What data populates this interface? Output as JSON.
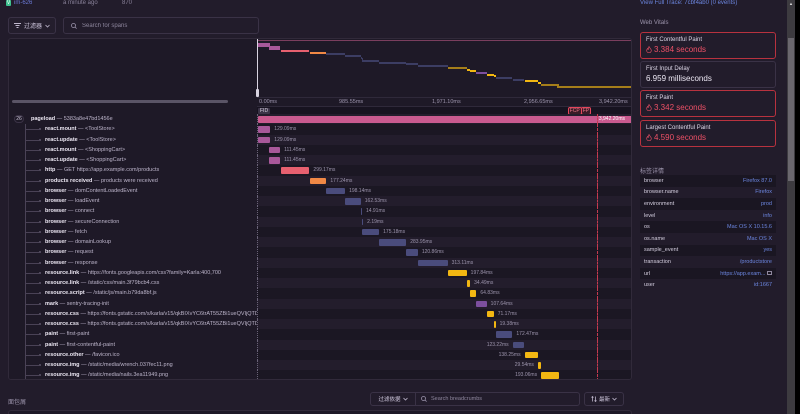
{
  "top": {
    "project": "im-626",
    "time_ago": "a minute ago",
    "number": "870",
    "full_trace_link": "View Full Trace: 7cbf4ab0 (0 events)"
  },
  "toolbar": {
    "filter_label": "过滤器",
    "search_placeholder": "Search for spans"
  },
  "timeline": {
    "axis_ticks": [
      "0.00ms",
      "985.55ms",
      "1,971.10ms",
      "2,956.65ms",
      "3,942.20ms"
    ],
    "fid_label": "FID",
    "fcp_label": "FCP",
    "fp_label": "FP",
    "total_ms": 3942.2,
    "fcp_ms": 3384,
    "fp_ms": 3342
  },
  "spans": [
    {
      "op": "pageload",
      "desc": "5383a8e47bd1456e",
      "start": 0,
      "dur": 3942.2,
      "dur_label": "3,942.20ms",
      "color": "#c95a8f",
      "root": true,
      "count": "26"
    },
    {
      "op": "react.mount",
      "desc": "<ToolStore>",
      "start": 0,
      "dur": 129.09,
      "dur_label": "129.09ms",
      "color": "#a8589a"
    },
    {
      "op": "react.update",
      "desc": "<ToolStore>",
      "start": 0,
      "dur": 129.09,
      "dur_label": "129.09ms",
      "color": "#a8589a"
    },
    {
      "op": "react.mount",
      "desc": "<ShoppingCart>",
      "start": 120,
      "dur": 111.45,
      "dur_label": "111.45ms",
      "color": "#a8589a"
    },
    {
      "op": "react.update",
      "desc": "<ShoppingCart>",
      "start": 120,
      "dur": 111.45,
      "dur_label": "111.45ms",
      "color": "#a8589a"
    },
    {
      "op": "http",
      "desc": "GET https://app.example.com/products",
      "start": 240,
      "dur": 299.17,
      "dur_label": "299.17ms",
      "color": "#e7606f"
    },
    {
      "op": "products received",
      "desc": "products were received",
      "start": 540,
      "dur": 177.24,
      "dur_label": "177.24ms",
      "color": "#f08845"
    },
    {
      "op": "browser",
      "desc": "domContentLoadedEvent",
      "start": 715,
      "dur": 198.14,
      "dur_label": "198.14ms",
      "color": "#4a4c7c"
    },
    {
      "op": "browser",
      "desc": "loadEvent",
      "start": 915,
      "dur": 162.53,
      "dur_label": "162.53ms",
      "color": "#4a4c7c"
    },
    {
      "op": "browser",
      "desc": "connect",
      "start": 1075,
      "dur": 14.91,
      "dur_label": "14.91ms",
      "color": "#4a4c7c"
    },
    {
      "op": "browser",
      "desc": "secureConnection",
      "start": 1090,
      "dur": 2.19,
      "dur_label": "2.19ms",
      "color": "#4a4c7c"
    },
    {
      "op": "browser",
      "desc": "fetch",
      "start": 1095,
      "dur": 175.18,
      "dur_label": "175.18ms",
      "color": "#4a4c7c"
    },
    {
      "op": "browser",
      "desc": "domainLookup",
      "start": 1270,
      "dur": 283.95,
      "dur_label": "283.95ms",
      "color": "#4a4c7c"
    },
    {
      "op": "browser",
      "desc": "request",
      "start": 1555,
      "dur": 120.86,
      "dur_label": "120.86ms",
      "color": "#4a4c7c"
    },
    {
      "op": "browser",
      "desc": "response",
      "start": 1675,
      "dur": 313.11,
      "dur_label": "313.11ms",
      "color": "#4a4c7c"
    },
    {
      "op": "resource.link",
      "desc": "https://fonts.googleapis.com/css?family=Karla:400,700",
      "start": 1990,
      "dur": 197.84,
      "dur_label": "197.84ms",
      "color": "#f2b712"
    },
    {
      "op": "resource.link",
      "desc": "/static/css/main.3f79bcb4.css",
      "start": 2190,
      "dur": 34.49,
      "dur_label": "34.49ms",
      "color": "#f2b712"
    },
    {
      "op": "resource.script",
      "desc": "/static/js/main.b79da8bf.js",
      "start": 2225,
      "dur": 64.83,
      "dur_label": "64.83ms",
      "color": "#f2b712"
    },
    {
      "op": "mark",
      "desc": "sentry-tracing-init",
      "start": 2290,
      "dur": 107.64,
      "dur_label": "107.64ms",
      "color": "#7c4f9e"
    },
    {
      "op": "resource.css",
      "desc": "https://fonts.gstatic.com/s/karla/v15/qkBIXvYC6trAT55ZBi1ueQVIjQTDH52aE0lK.woff2",
      "start": 2400,
      "dur": 71.17,
      "dur_label": "71.17ms",
      "color": "#f2b712"
    },
    {
      "op": "resource.css",
      "desc": "https://fonts.gstatic.com/s/karla/v15/qkBIXvYC6trAT55ZBi1ueQVIjQTD-JqaE0lK.woff2",
      "start": 2472,
      "dur": 19.38,
      "dur_label": "19.38ms",
      "color": "#f2b712"
    },
    {
      "op": "paint",
      "desc": "first-paint",
      "start": 2495,
      "dur": 172.47,
      "dur_label": "172.47ms",
      "color": "#4a4c7c"
    },
    {
      "op": "paint",
      "desc": "first-contentful-paint",
      "start": 2670,
      "dur": 123.22,
      "dur_label": "123.22ms",
      "color": "#4a4c7c",
      "label_left": true
    },
    {
      "op": "resource.other",
      "desc": "/favicon.ico",
      "start": 2795,
      "dur": 138.25,
      "dur_label": "138.25ms",
      "color": "#f2b712",
      "label_left": true
    },
    {
      "op": "resource.img",
      "desc": "/static/media/wrench.037fec11.png",
      "start": 2935,
      "dur": 29.54,
      "dur_label": "29.54ms",
      "color": "#f2b712",
      "label_left": true
    },
    {
      "op": "resource.img",
      "desc": "/static/media/nails.3ea11949.png",
      "start": 2968,
      "dur": 193.06,
      "dur_label": "193.06ms",
      "color": "#f2b712",
      "label_left": true
    },
    {
      "op": "resource.img",
      "desc": "/static/media/hammer.9681eabf.png",
      "start": 3140,
      "dur": 802.83,
      "dur_label": "802.83ms",
      "color": "#f2b712",
      "label_left": true
    }
  ],
  "web_vitals": {
    "title": "Web Vitals",
    "items": [
      {
        "name": "First Contentful Paint",
        "value": "3.384 seconds",
        "status": "bad"
      },
      {
        "name": "First Input Delay",
        "value": "6.959 milliseconds",
        "status": "good"
      },
      {
        "name": "First Paint",
        "value": "3.342 seconds",
        "status": "bad"
      },
      {
        "name": "Largest Contentful Paint",
        "value": "4.590 seconds",
        "status": "bad"
      }
    ]
  },
  "tags": {
    "title": "标签详情",
    "items": [
      {
        "key": "browser",
        "value": "Firefox 87.0"
      },
      {
        "key": "browser.name",
        "value": "Firefox"
      },
      {
        "key": "environment",
        "value": "prod"
      },
      {
        "key": "level",
        "value": "info"
      },
      {
        "key": "os",
        "value": "Mac OS X 10.15.6"
      },
      {
        "key": "os.name",
        "value": "Mac OS X"
      },
      {
        "key": "sample_event",
        "value": "yes"
      },
      {
        "key": "transaction",
        "value": "/productstore"
      },
      {
        "key": "url",
        "value": "https://app.exam..."
      },
      {
        "key": "user",
        "value": "id:1667"
      }
    ]
  },
  "breadcrumbs": {
    "title": "面包屑",
    "type_filter_label": "过滤依据",
    "search_placeholder": "Search breadcrumbs",
    "sort_label": "最新"
  },
  "colors": {
    "accent_link": "#6c86e0",
    "error": "#ee5167",
    "background": "#221c2b"
  }
}
